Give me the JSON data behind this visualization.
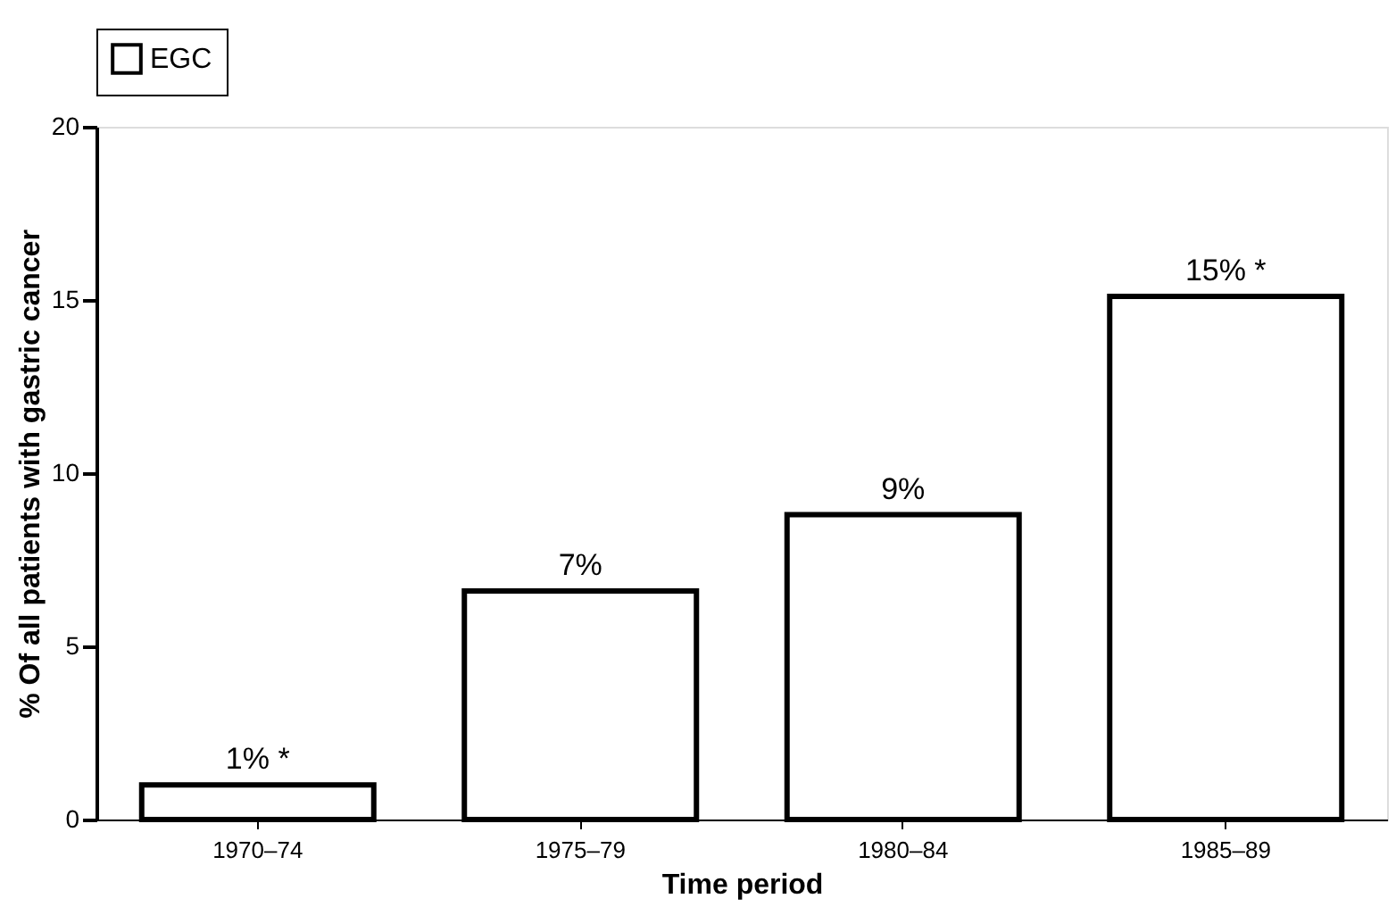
{
  "chart_data": {
    "type": "bar",
    "xlabel": "Time period",
    "ylabel": "% Of all patients with gastric cancer",
    "categories": [
      "1970–74",
      "1975–79",
      "1980–84",
      "1985–89"
    ],
    "series": [
      {
        "name": "EGC",
        "color": "#ffffff",
        "values": [
          1.0,
          6.6,
          8.8,
          15.1
        ],
        "value_labels": [
          "1% *",
          "7%",
          "9%",
          "15% *"
        ]
      }
    ],
    "ylim": [
      0,
      20
    ],
    "yticks": [
      0,
      5,
      10,
      15,
      20
    ],
    "grid": false,
    "legend": "top"
  }
}
